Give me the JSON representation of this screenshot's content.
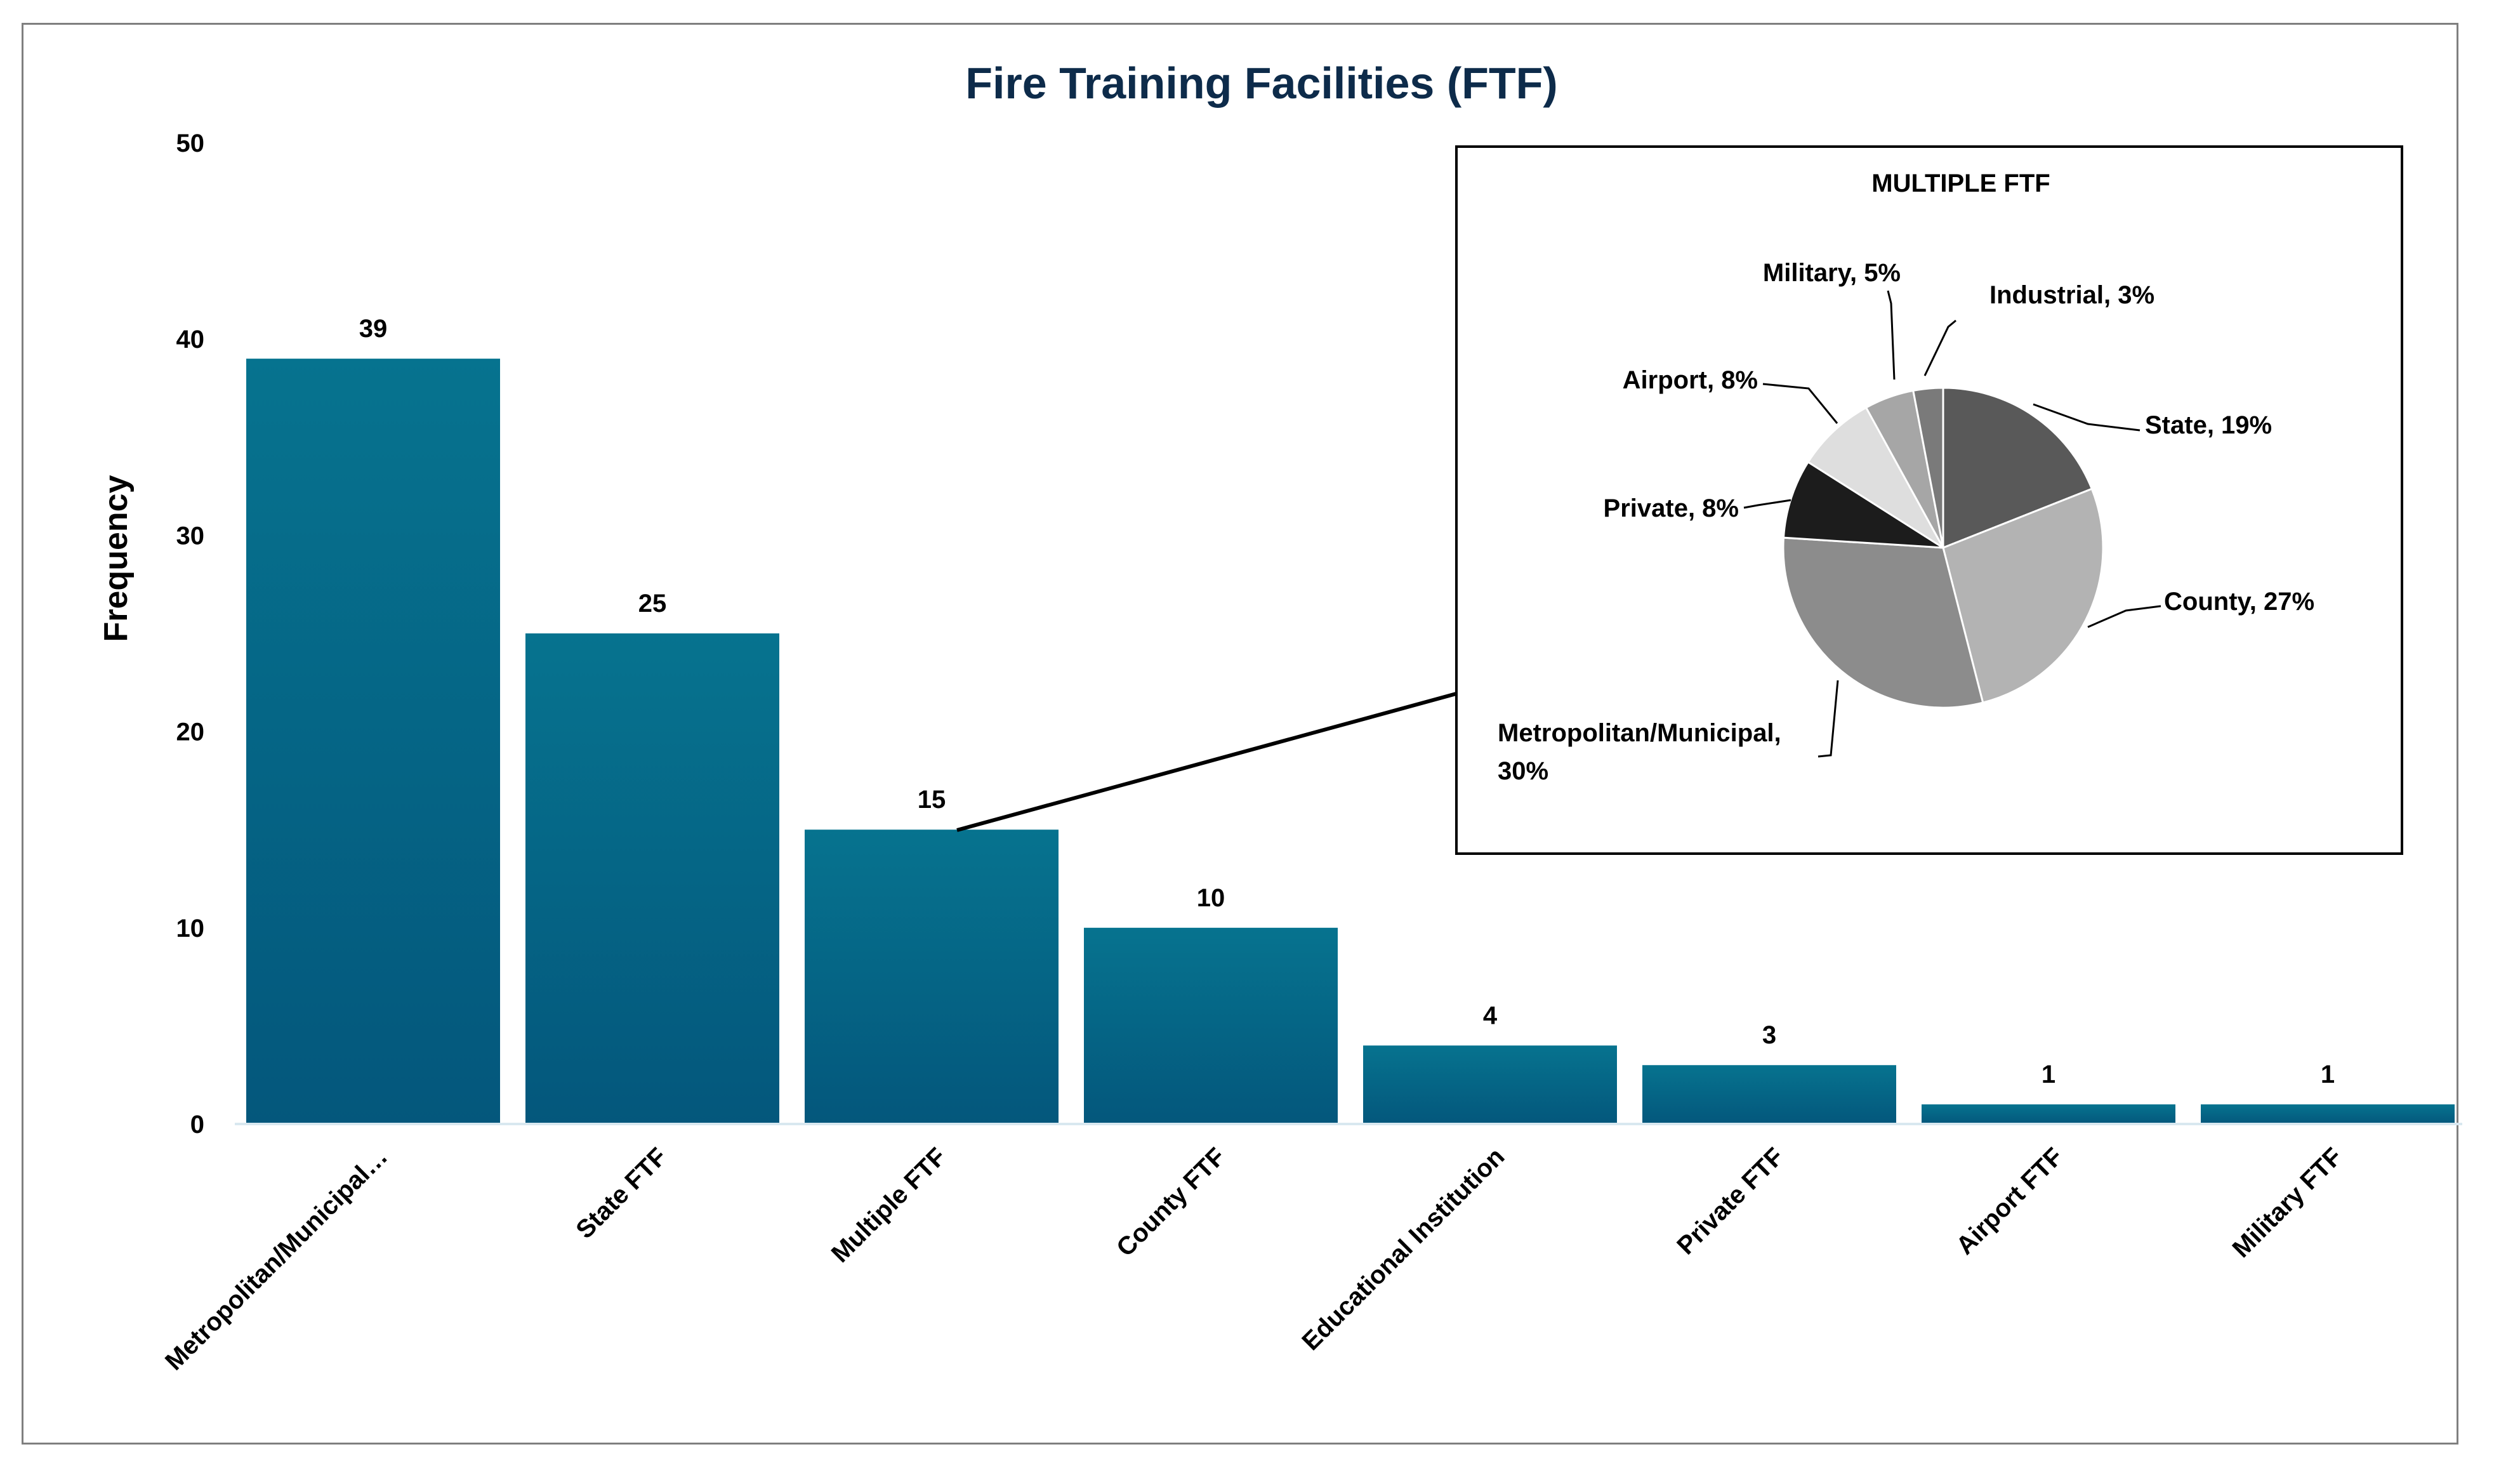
{
  "chart_data": [
    {
      "type": "bar",
      "title": "Fire Training Facilities (FTF)",
      "ylabel": "Frequency",
      "xlabel": "",
      "ylim": [
        0,
        50
      ],
      "yticks": [
        0,
        10,
        20,
        30,
        40,
        50
      ],
      "categories": [
        "Metropolitan/Municipal…",
        "State FTF",
        "Multiple FTF",
        "County FTF",
        "Educational Institution",
        "Private FTF",
        "Airport FTF",
        "Military FTF"
      ],
      "values": [
        39,
        25,
        15,
        10,
        4,
        3,
        1,
        1
      ],
      "data_labels": [
        "39",
        "25",
        "15",
        "10",
        "4",
        "3",
        "1",
        "1"
      ],
      "bar_color": "#045f82",
      "grid": false,
      "legend": "none"
    },
    {
      "type": "pie",
      "title": "MULTIPLE FTF",
      "slices": [
        {
          "label": "State, 19%",
          "value": 19,
          "color": "#595959"
        },
        {
          "label": "County, 27%",
          "value": 27,
          "color": "#b3b3b3"
        },
        {
          "label": "Metropolitan/Municipal,",
          "label2": "30%",
          "value": 30,
          "color": "#8c8c8c"
        },
        {
          "label": "Private, 8%",
          "value": 8,
          "color": "#1c1c1c"
        },
        {
          "label": "Airport, 8%",
          "value": 8,
          "color": "#dedede"
        },
        {
          "label": "Military, 5%",
          "value": 5,
          "color": "#a6a6a6"
        },
        {
          "label": "Industrial, 3%",
          "value": 3,
          "color": "#7a7a7a"
        }
      ]
    }
  ]
}
